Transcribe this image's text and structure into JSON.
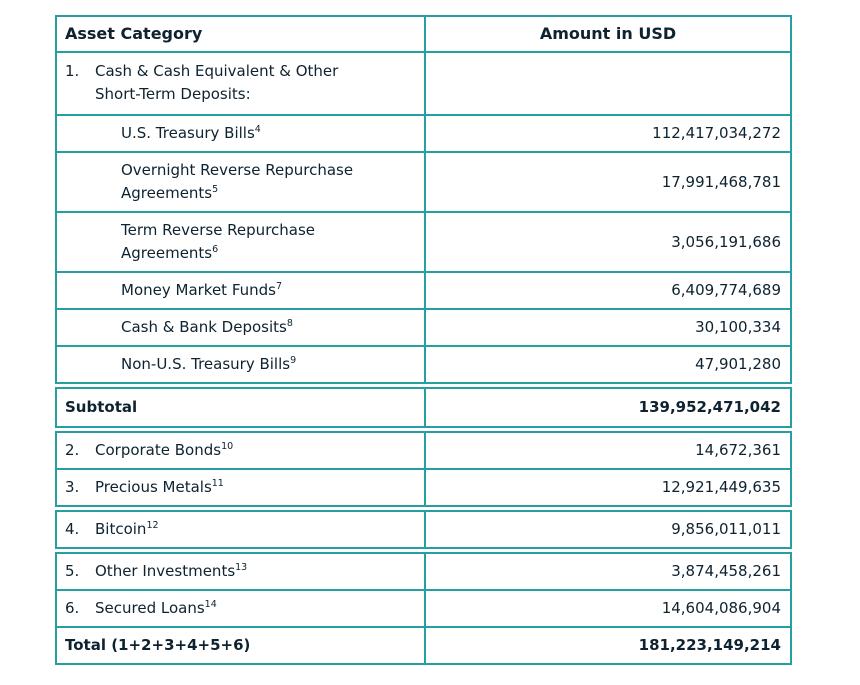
{
  "theme": {
    "border_color": "#279EA1",
    "text_color": "#0E2230",
    "background_color": "#FFFFFF"
  },
  "table": {
    "columns": [
      {
        "label": "Asset Category"
      },
      {
        "label": "Amount in USD"
      }
    ],
    "rows": [
      {
        "type": "group",
        "number": "1.",
        "label": "Cash & Cash Equivalent & Other\nShort-Term Deposits:",
        "sup": "",
        "amount": ""
      },
      {
        "type": "sub",
        "label": "U.S. Treasury Bills",
        "sup": "4",
        "amount": "112,417,034,272"
      },
      {
        "type": "sub",
        "label": "Overnight Reverse Repurchase\nAgreements",
        "sup": "5",
        "amount": "17,991,468,781"
      },
      {
        "type": "sub",
        "label": "Term Reverse Repurchase\nAgreements",
        "sup": "6",
        "amount": "3,056,191,686"
      },
      {
        "type": "sub",
        "label": "Money Market Funds",
        "sup": "7",
        "amount": "6,409,774,689"
      },
      {
        "type": "sub",
        "label": "Cash & Bank Deposits",
        "sup": "8",
        "amount": "30,100,334"
      },
      {
        "type": "sub",
        "label": "Non-U.S. Treasury Bills",
        "sup": "9",
        "amount": "47,901,280"
      },
      {
        "type": "subtotal",
        "label": "Subtotal",
        "sup": "",
        "amount": "139,952,471,042",
        "separator_above": true
      },
      {
        "type": "item",
        "number": "2.",
        "label": "Corporate Bonds",
        "sup": "10",
        "amount": "14,672,361",
        "separator_above": true
      },
      {
        "type": "item",
        "number": "3.",
        "label": "Precious Metals",
        "sup": "11",
        "amount": "12,921,449,635"
      },
      {
        "type": "item",
        "number": "4.",
        "label": "Bitcoin",
        "sup": "12",
        "amount": "9,856,011,011",
        "separator_above": true
      },
      {
        "type": "item",
        "number": "5.",
        "label": "Other Investments",
        "sup": "13",
        "amount": "3,874,458,261",
        "separator_above": true
      },
      {
        "type": "item",
        "number": "6.",
        "label": "Secured Loans",
        "sup": "14",
        "amount": "14,604,086,904"
      },
      {
        "type": "total",
        "label": "Total (1+2+3+4+5+6)",
        "sup": "",
        "amount": "181,223,149,214"
      }
    ]
  }
}
